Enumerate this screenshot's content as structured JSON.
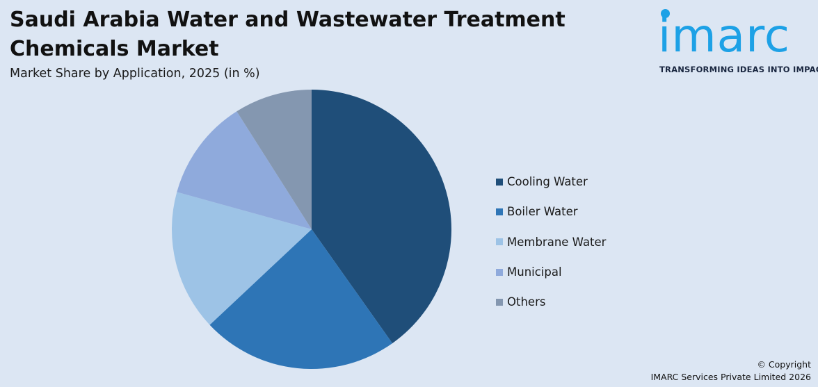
{
  "header": {
    "title": "Saudi Arabia Water and Wastewater Treatment Chemicals Market",
    "subtitle": "Market Share by Application, 2025 (in %)"
  },
  "logo": {
    "wordmark": "imarc",
    "tagline": "TRANSFORMING IDEAS INTO IMPACT",
    "color": "#1da1e6"
  },
  "chart_data": {
    "type": "pie",
    "title": "Saudi Arabia Water and Wastewater Treatment Chemicals Market",
    "subtitle": "Market Share by Application, 2025 (in %)",
    "legend_position": "right",
    "start_angle": "12 o'clock",
    "direction": "clockwise",
    "slices": [
      {
        "label": "Cooling Water",
        "value": 40.2,
        "color": "#1f4e79"
      },
      {
        "label": "Boiler Water",
        "value": 22.8,
        "color": "#2e75b6"
      },
      {
        "label": "Membrane Water",
        "value": 16.3,
        "color": "#9dc3e6"
      },
      {
        "label": "Municipal",
        "value": 11.7,
        "color": "#8faadc"
      },
      {
        "label": "Others",
        "value": 9.0,
        "color": "#8497b0"
      }
    ]
  },
  "footer": {
    "copyright_line1": "© Copyright",
    "copyright_line2": "IMARC Services Private Limited 2026"
  }
}
